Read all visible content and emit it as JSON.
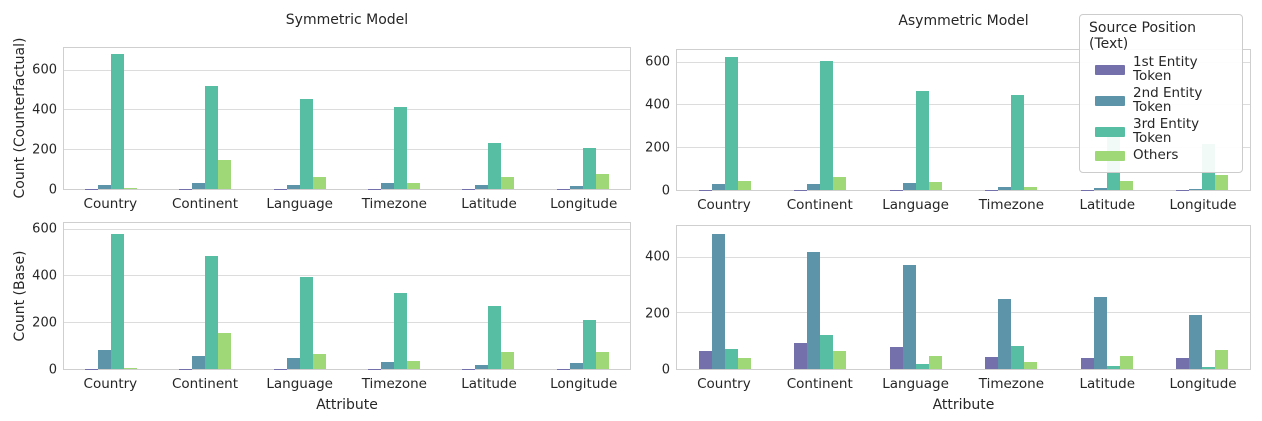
{
  "palette": [
    {
      "name": "1st Entity Token",
      "color": "#7370ab"
    },
    {
      "name": "2nd Entity Token",
      "color": "#5d94a9"
    },
    {
      "name": "3rd Entity Token",
      "color": "#57bda3"
    },
    {
      "name": "Others",
      "color": "#9fd977"
    }
  ],
  "legend": {
    "title": "Source Position (Text)",
    "entries": [
      "1st Entity Token",
      "2nd Entity Token",
      "3rd Entity Token",
      "Others"
    ]
  },
  "chart_data": [
    {
      "id": "symmetric-counterfactual",
      "type": "bar",
      "title": "Symmetric Model",
      "ylabel": "Count (Counterfactual)",
      "xlabel": "",
      "categories": [
        "Country",
        "Continent",
        "Language",
        "Timezone",
        "Latitude",
        "Longitude"
      ],
      "series": [
        {
          "name": "1st Entity Token",
          "values": [
            2,
            2,
            2,
            2,
            2,
            2
          ]
        },
        {
          "name": "2nd Entity Token",
          "values": [
            22,
            32,
            21,
            30,
            18,
            15
          ]
        },
        {
          "name": "3rd Entity Token",
          "values": [
            685,
            520,
            458,
            418,
            235,
            210
          ]
        },
        {
          "name": "Others",
          "values": [
            3,
            145,
            60,
            33,
            60,
            74
          ]
        }
      ],
      "yticks": [
        0,
        200,
        400,
        600
      ],
      "ylim": [
        0,
        715
      ],
      "grid": true
    },
    {
      "id": "asymmetric-counterfactual",
      "type": "bar",
      "title": "Asymmetric Model",
      "ylabel": "",
      "xlabel": "",
      "categories": [
        "Country",
        "Continent",
        "Language",
        "Timezone",
        "Latitude",
        "Longitude"
      ],
      "series": [
        {
          "name": "1st Entity Token",
          "values": [
            2,
            2,
            2,
            2,
            2,
            2
          ]
        },
        {
          "name": "2nd Entity Token",
          "values": [
            28,
            28,
            35,
            15,
            9,
            6
          ]
        },
        {
          "name": "3rd Entity Token",
          "values": [
            628,
            607,
            468,
            447,
            260,
            217
          ]
        },
        {
          "name": "Others",
          "values": [
            42,
            60,
            38,
            16,
            42,
            72
          ]
        }
      ],
      "yticks": [
        0,
        200,
        400,
        600
      ],
      "ylim": [
        0,
        660
      ],
      "grid": true,
      "legend_position": "upper right"
    },
    {
      "id": "symmetric-base",
      "type": "bar",
      "title": "",
      "ylabel": "Count (Base)",
      "xlabel": "Attribute",
      "categories": [
        "Country",
        "Continent",
        "Language",
        "Timezone",
        "Latitude",
        "Longitude"
      ],
      "series": [
        {
          "name": "1st Entity Token",
          "values": [
            2,
            2,
            2,
            2,
            2,
            2
          ]
        },
        {
          "name": "2nd Entity Token",
          "values": [
            82,
            57,
            48,
            31,
            17,
            24
          ]
        },
        {
          "name": "3rd Entity Token",
          "values": [
            582,
            488,
            398,
            330,
            270,
            213
          ]
        },
        {
          "name": "Others",
          "values": [
            3,
            156,
            66,
            35,
            74,
            74
          ]
        }
      ],
      "yticks": [
        0,
        200,
        400,
        600
      ],
      "ylim": [
        0,
        630
      ],
      "grid": true
    },
    {
      "id": "asymmetric-base",
      "type": "bar",
      "title": "",
      "ylabel": "",
      "xlabel": "Attribute",
      "categories": [
        "Country",
        "Continent",
        "Language",
        "Timezone",
        "Latitude",
        "Longitude"
      ],
      "series": [
        {
          "name": "1st Entity Token",
          "values": [
            64,
            95,
            80,
            42,
            38,
            38
          ]
        },
        {
          "name": "2nd Entity Token",
          "values": [
            487,
            420,
            373,
            252,
            260,
            194
          ]
        },
        {
          "name": "3rd Entity Token",
          "values": [
            72,
            122,
            17,
            82,
            12,
            9
          ]
        },
        {
          "name": "Others",
          "values": [
            38,
            64,
            46,
            25,
            47,
            69
          ]
        }
      ],
      "yticks": [
        0,
        200,
        400
      ],
      "ylim": [
        0,
        515
      ],
      "grid": true
    }
  ]
}
